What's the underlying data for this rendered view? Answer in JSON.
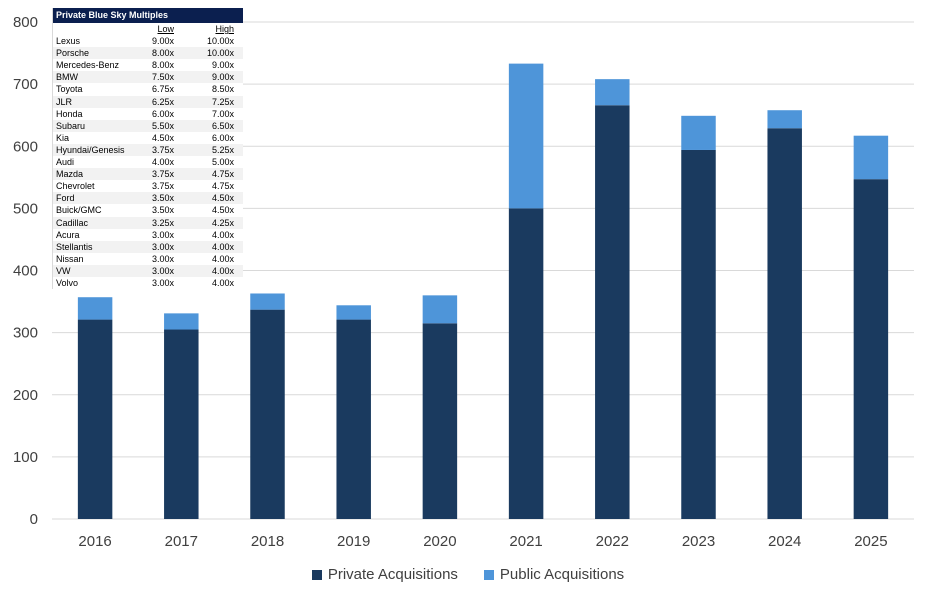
{
  "chart_data": {
    "type": "bar",
    "stacked": true,
    "categories": [
      "2016",
      "2017",
      "2018",
      "2019",
      "2020",
      "2021",
      "2022",
      "2023",
      "2024",
      "2025"
    ],
    "series": [
      {
        "name": "Private Acquisitions",
        "color": "#1a3a5f",
        "values": [
          321,
          305,
          337,
          321,
          315,
          500,
          666,
          594,
          629,
          547
        ]
      },
      {
        "name": "Public Acquisitions",
        "color": "#4e95d9",
        "values": [
          36,
          26,
          26,
          23,
          45,
          233,
          42,
          55,
          29,
          70
        ]
      }
    ],
    "ylim": [
      0,
      800
    ],
    "yticks": [
      0,
      100,
      200,
      300,
      400,
      500,
      600,
      700,
      800
    ],
    "grid": true,
    "legend_position": "bottom"
  },
  "multiples": {
    "title": "Private Blue Sky Multiples",
    "low_label": "Low",
    "high_label": "High",
    "rows": [
      {
        "brand": "Lexus",
        "low": "9.00x",
        "high": "10.00x"
      },
      {
        "brand": "Porsche",
        "low": "8.00x",
        "high": "10.00x"
      },
      {
        "brand": "Mercedes-Benz",
        "low": "8.00x",
        "high": "9.00x"
      },
      {
        "brand": "BMW",
        "low": "7.50x",
        "high": "9.00x"
      },
      {
        "brand": "Toyota",
        "low": "6.75x",
        "high": "8.50x"
      },
      {
        "brand": "JLR",
        "low": "6.25x",
        "high": "7.25x"
      },
      {
        "brand": "Honda",
        "low": "6.00x",
        "high": "7.00x"
      },
      {
        "brand": "Subaru",
        "low": "5.50x",
        "high": "6.50x"
      },
      {
        "brand": "Kia",
        "low": "4.50x",
        "high": "6.00x"
      },
      {
        "brand": "Hyundai/Genesis",
        "low": "3.75x",
        "high": "5.25x"
      },
      {
        "brand": "Audi",
        "low": "4.00x",
        "high": "5.00x"
      },
      {
        "brand": "Mazda",
        "low": "3.75x",
        "high": "4.75x"
      },
      {
        "brand": "Chevrolet",
        "low": "3.75x",
        "high": "4.75x"
      },
      {
        "brand": "Ford",
        "low": "3.50x",
        "high": "4.50x"
      },
      {
        "brand": "Buick/GMC",
        "low": "3.50x",
        "high": "4.50x"
      },
      {
        "brand": "Cadillac",
        "low": "3.25x",
        "high": "4.25x"
      },
      {
        "brand": "Acura",
        "low": "3.00x",
        "high": "4.00x"
      },
      {
        "brand": "Stellantis",
        "low": "3.00x",
        "high": "4.00x"
      },
      {
        "brand": "Nissan",
        "low": "3.00x",
        "high": "4.00x"
      },
      {
        "brand": "VW",
        "low": "3.00x",
        "high": "4.00x"
      },
      {
        "brand": "Volvo",
        "low": "3.00x",
        "high": "4.00x"
      }
    ]
  }
}
